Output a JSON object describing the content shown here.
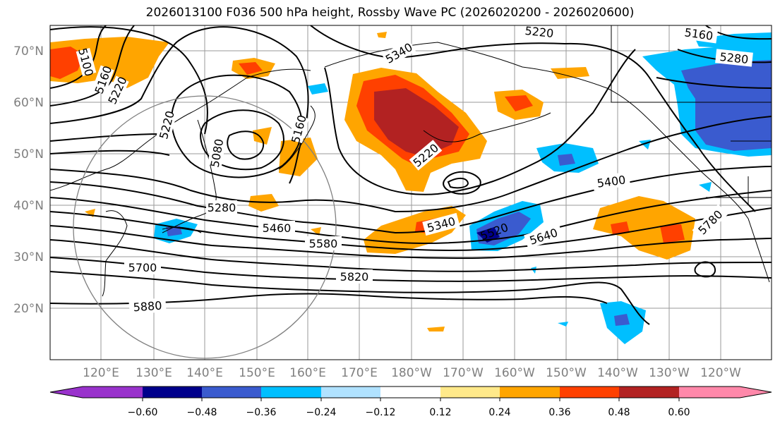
{
  "title": "2026013100 F036 500 hPa height, Rossby Wave PC (2026020200 - 2026020600)",
  "map": {
    "lat_labels": [
      "70°N",
      "60°N",
      "50°N",
      "40°N",
      "30°N",
      "20°N"
    ],
    "lon_labels": [
      "120°E",
      "130°E",
      "140°E",
      "150°E",
      "160°E",
      "170°E",
      "180°W",
      "170°W",
      "160°W",
      "150°W",
      "140°W",
      "130°W",
      "120°W"
    ],
    "contour_labels": [
      "5100",
      "5160",
      "5220",
      "5220",
      "5160",
      "5080",
      "5280",
      "5460",
      "5580",
      "5700",
      "5820",
      "5880",
      "5340",
      "5220",
      "5340",
      "5400",
      "5640",
      "5780",
      "5220",
      "5160",
      "5280",
      "5520"
    ]
  },
  "colorbar": {
    "colors": [
      "#9932cc",
      "#00008b",
      "#3a5bcf",
      "#00bfff",
      "#b0e2ff",
      "#ffffff",
      "#ffe98a",
      "#ffa500",
      "#ff4000",
      "#b22222",
      "#ff88aa"
    ],
    "tick_labels": [
      "−0.60",
      "−0.48",
      "−0.36",
      "−0.24",
      "−0.12",
      "0.12",
      "0.24",
      "0.36",
      "0.48",
      "0.60"
    ]
  }
}
